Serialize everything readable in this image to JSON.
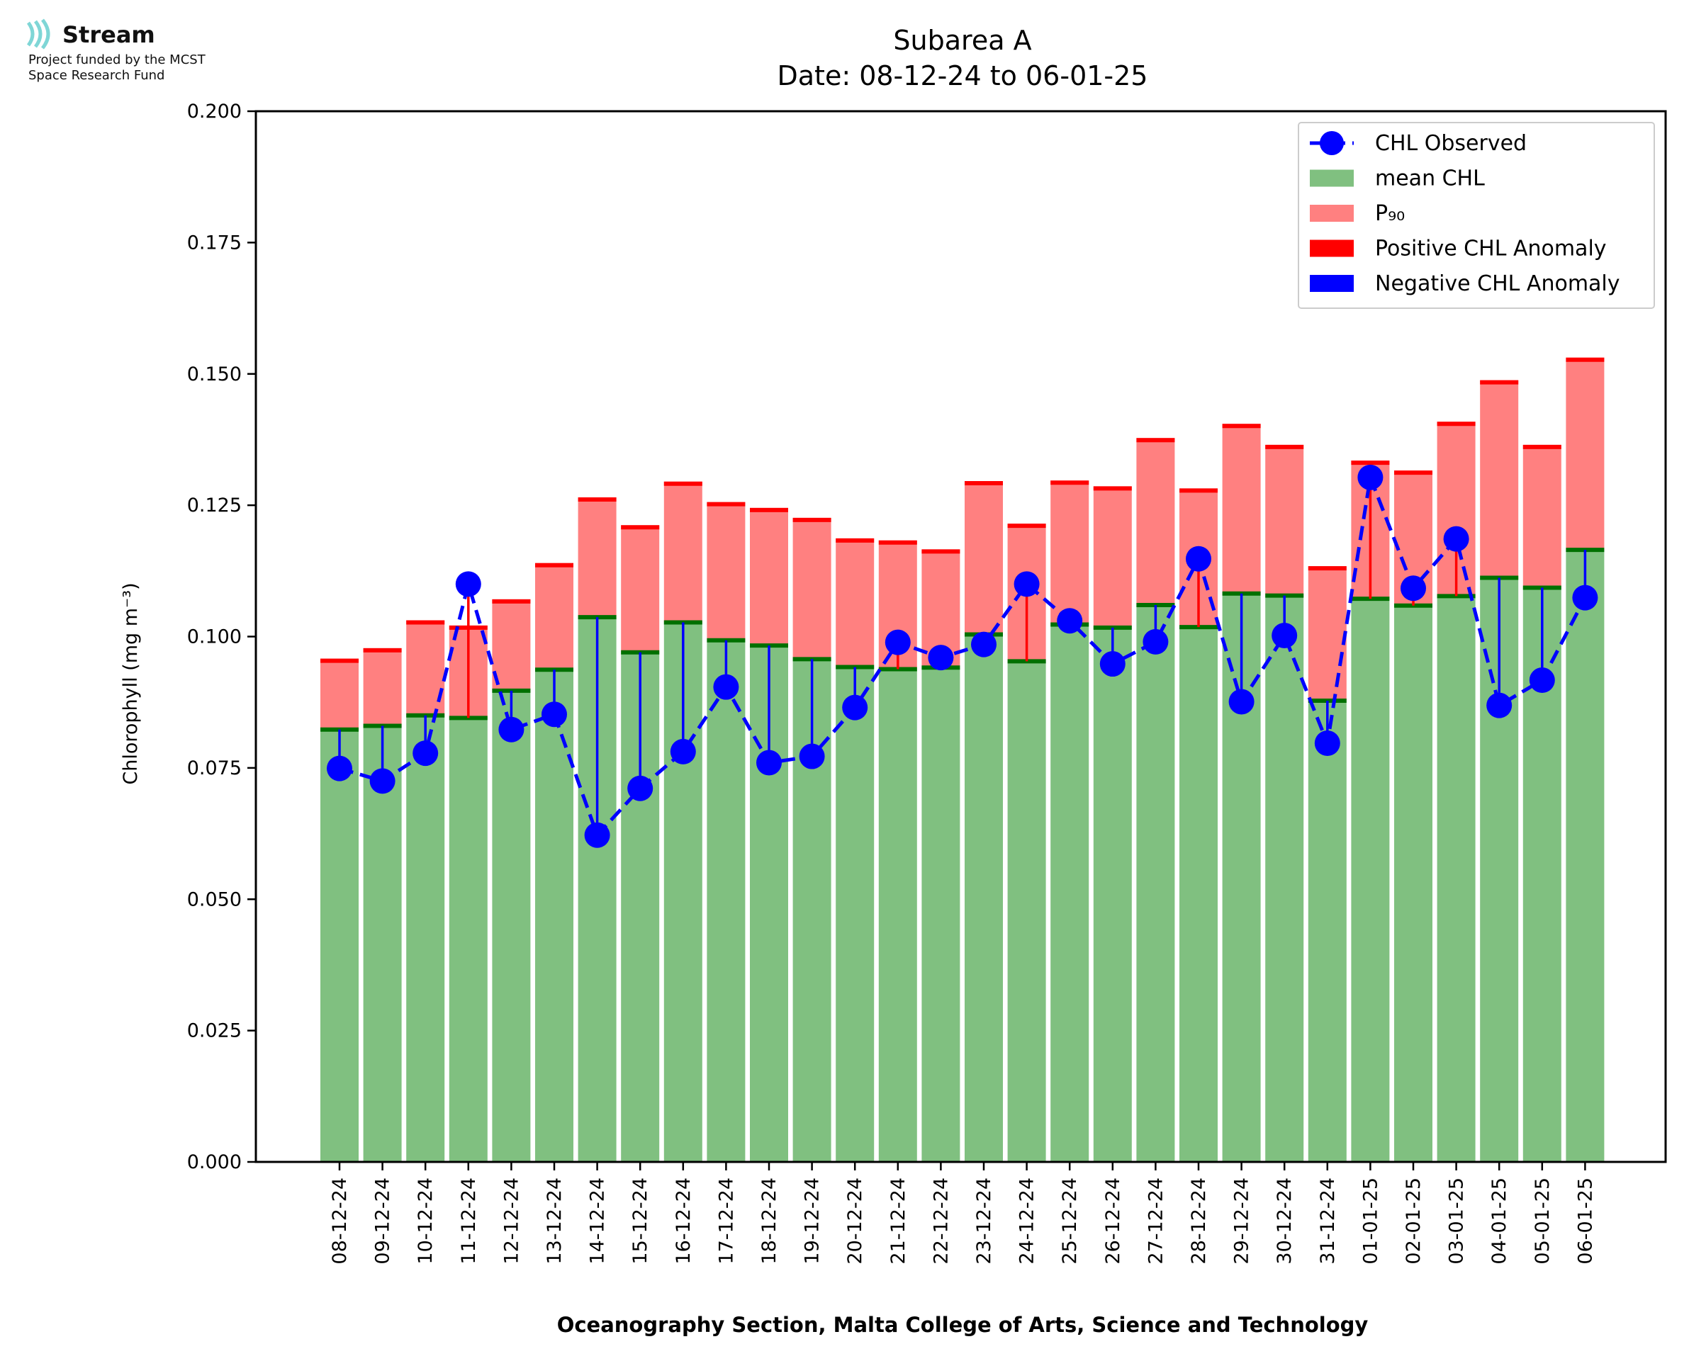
{
  "logo": {
    "name": "Stream",
    "line1": "Project funded by the MCST",
    "line2": "Space Research Fund",
    "color": "#7fd6d6"
  },
  "chart_data": {
    "type": "bar",
    "title": "Subarea A",
    "subtitle": "Date: 08-12-24 to 06-01-25",
    "xlabel": "Oceanography Section, Malta College of Arts, Science and Technology",
    "ylabel": "Chlorophyll (mg m⁻³)",
    "ylim": [
      0,
      0.2
    ],
    "yticks": [
      "0.000",
      "0.025",
      "0.050",
      "0.075",
      "0.100",
      "0.125",
      "0.150",
      "0.175",
      "0.200"
    ],
    "grid": false,
    "legend_position": "top-right",
    "categories": [
      "08-12-24",
      "09-12-24",
      "10-12-24",
      "11-12-24",
      "12-12-24",
      "13-12-24",
      "14-12-24",
      "15-12-24",
      "16-12-24",
      "17-12-24",
      "18-12-24",
      "19-12-24",
      "20-12-24",
      "21-12-24",
      "22-12-24",
      "23-12-24",
      "24-12-24",
      "25-12-24",
      "26-12-24",
      "27-12-24",
      "28-12-24",
      "29-12-24",
      "30-12-24",
      "31-12-24",
      "01-01-25",
      "02-01-25",
      "03-01-25",
      "04-01-25",
      "05-01-25",
      "06-01-25"
    ],
    "series": [
      {
        "name": "mean CHL",
        "color": "#80c080",
        "values": [
          0.0823,
          0.083,
          0.085,
          0.0845,
          0.0897,
          0.0937,
          0.1037,
          0.097,
          0.1027,
          0.0993,
          0.0983,
          0.0957,
          0.0942,
          0.0938,
          0.0941,
          0.1004,
          0.0953,
          0.1023,
          0.1017,
          0.106,
          0.1018,
          0.1082,
          0.1078,
          0.0878,
          0.1072,
          0.1059,
          0.1077,
          0.1112,
          0.1093,
          0.1165
        ]
      },
      {
        "name": "P₉₀",
        "color": "#ff8080",
        "values": [
          0.0958,
          0.0978,
          0.1031,
          0.1021,
          0.1071,
          0.114,
          0.1265,
          0.1212,
          0.1295,
          0.1256,
          0.1245,
          0.1226,
          0.1187,
          0.1183,
          0.1166,
          0.1296,
          0.1215,
          0.1297,
          0.1286,
          0.1378,
          0.1282,
          0.1405,
          0.1365,
          0.1134,
          0.1335,
          0.1316,
          0.1409,
          0.1488,
          0.1365,
          0.1531
        ]
      },
      {
        "name": "CHL Observed",
        "color": "#0000ff",
        "values": [
          0.0749,
          0.0725,
          0.0778,
          0.11,
          0.0823,
          0.0852,
          0.0622,
          0.0711,
          0.0781,
          0.0904,
          0.076,
          0.0772,
          0.0865,
          0.0989,
          0.096,
          0.0985,
          0.11,
          0.103,
          0.0948,
          0.099,
          0.1148,
          0.0876,
          0.1002,
          0.0797,
          0.1303,
          0.1092,
          0.1186,
          0.0869,
          0.0917,
          0.1074
        ]
      }
    ],
    "legend": [
      {
        "label": "CHL Observed",
        "kind": "line-marker",
        "color": "#0000ff"
      },
      {
        "label": "mean CHL",
        "kind": "patch",
        "color": "#80c080"
      },
      {
        "label": "P₉₀",
        "kind": "patch",
        "color": "#ff8080"
      },
      {
        "label": "Positive CHL Anomaly",
        "kind": "patch",
        "color": "#ff0000"
      },
      {
        "label": "Negative CHL Anomaly",
        "kind": "patch",
        "color": "#0000ff"
      }
    ],
    "anomaly_colors": {
      "positive": "#ff0000",
      "negative": "#0000ff",
      "mean_cap": "#007000",
      "p90_cap": "#ff0000"
    }
  }
}
